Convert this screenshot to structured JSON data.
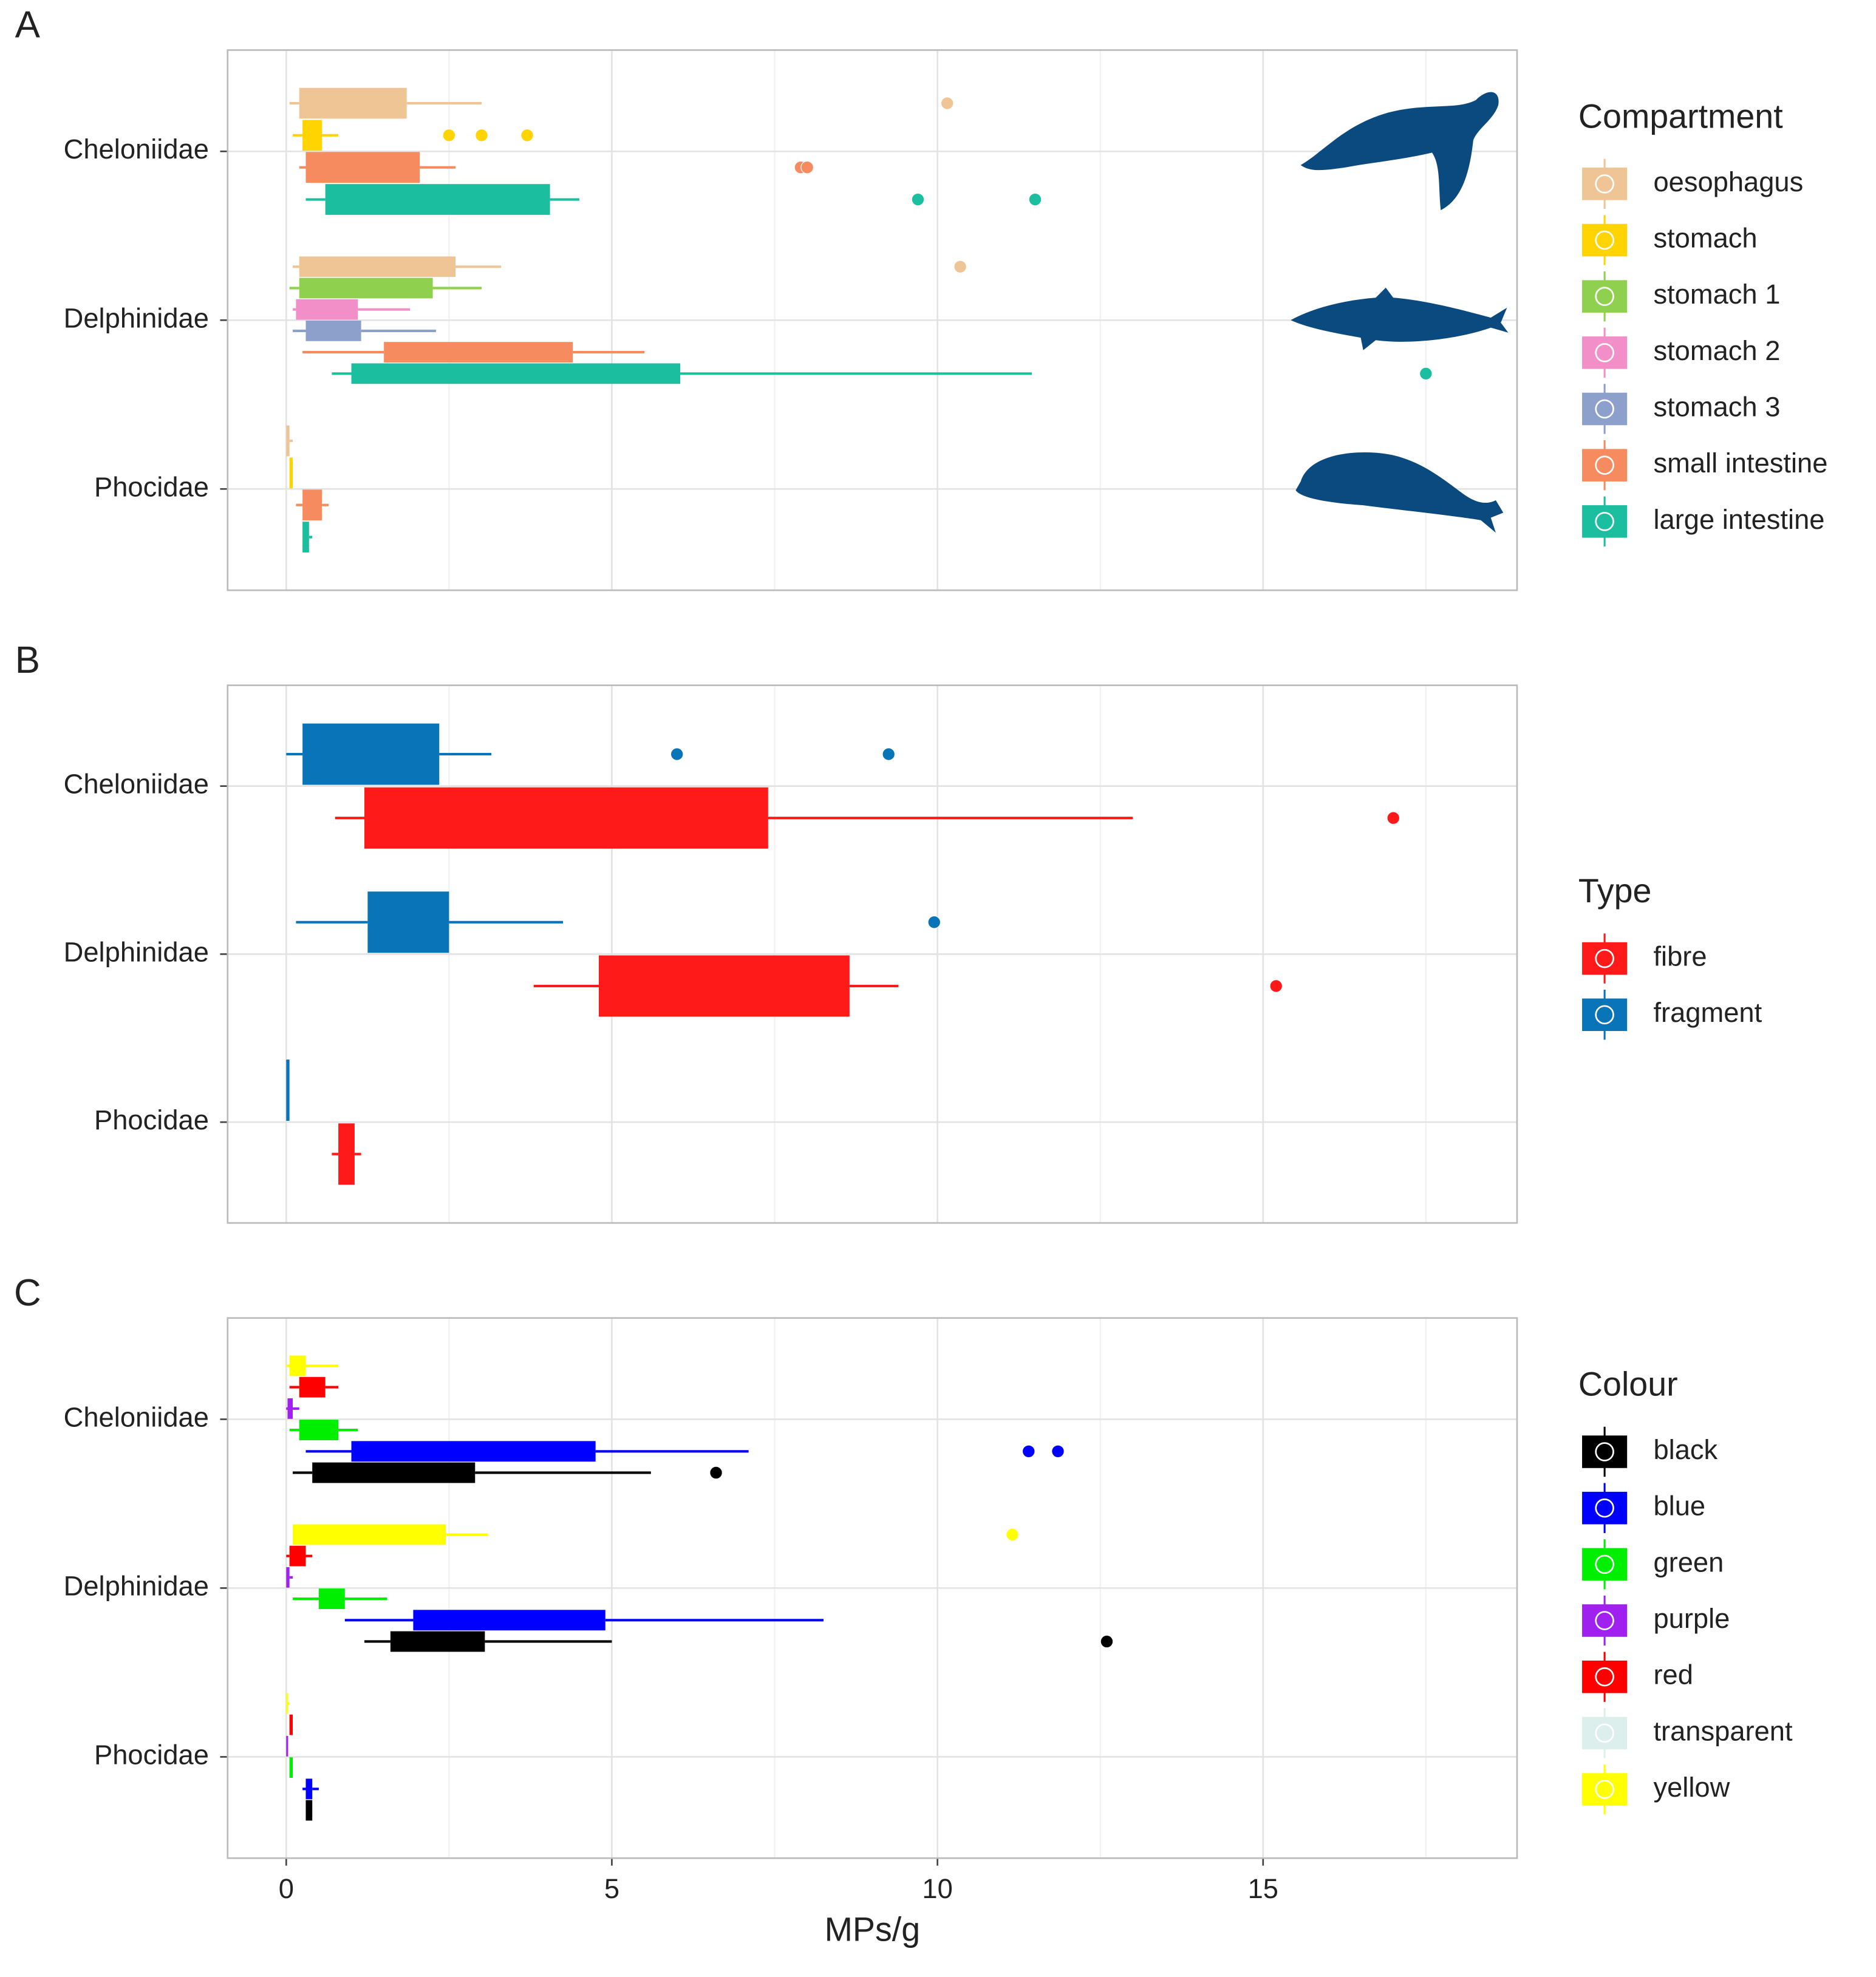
{
  "chart_data": [
    {
      "type": "boxplot",
      "orientation": "horizontal",
      "panel_label": "A",
      "legend_title": "Compartment",
      "first_series_on_top": true,
      "grid": true,
      "x_tick_labels": false,
      "categories": [
        "Cheloniidae",
        "Delphinidae",
        "Phocidae"
      ],
      "xlim": [
        -0.9,
        18.9
      ],
      "xticks": [
        0,
        5,
        10,
        15
      ],
      "minor_xticks": [
        2.5,
        7.5,
        12.5,
        17.5
      ],
      "series": [
        {
          "name": "oesophagus",
          "color": "#f0c596",
          "boxes": [
            [
              0.05,
              0.2,
              1.85,
              3.0
            ],
            [
              0.1,
              0.2,
              2.6,
              3.3
            ],
            [
              0.0,
              0.0,
              0.05,
              0.1
            ]
          ],
          "outliers": [
            [
              10.15
            ],
            [
              10.35
            ],
            []
          ]
        },
        {
          "name": "stomach",
          "color": "#ffd400",
          "boxes": [
            [
              0.1,
              0.25,
              0.55,
              0.8
            ],
            null,
            [
              0.05,
              0.05,
              0.1,
              0.1
            ]
          ],
          "outliers": [
            [
              2.5,
              3.0,
              3.7
            ],
            [],
            []
          ]
        },
        {
          "name": "stomach 1",
          "color": "#8fd14f",
          "boxes": [
            null,
            [
              0.05,
              0.2,
              2.25,
              3.0
            ],
            null
          ],
          "outliers": [
            [],
            [],
            []
          ]
        },
        {
          "name": "stomach 2",
          "color": "#f38fc8",
          "boxes": [
            null,
            [
              0.1,
              0.15,
              1.1,
              1.9
            ],
            null
          ],
          "outliers": [
            [],
            [],
            []
          ]
        },
        {
          "name": "stomach 3",
          "color": "#8da0cb",
          "boxes": [
            null,
            [
              0.1,
              0.3,
              1.15,
              2.3
            ],
            null
          ],
          "outliers": [
            [],
            [],
            []
          ]
        },
        {
          "name": "small intestine",
          "color": "#f68b5f",
          "boxes": [
            [
              0.2,
              0.3,
              2.05,
              2.6
            ],
            [
              0.25,
              1.5,
              4.4,
              5.5
            ],
            [
              0.15,
              0.25,
              0.55,
              0.65
            ]
          ],
          "outliers": [
            [
              7.9,
              8.0
            ],
            [],
            []
          ]
        },
        {
          "name": "large intestine",
          "color": "#1bbf9f",
          "boxes": [
            [
              0.3,
              0.6,
              4.05,
              4.5
            ],
            [
              0.7,
              1.0,
              6.05,
              11.45
            ],
            [
              0.25,
              0.25,
              0.35,
              0.4
            ]
          ],
          "outliers": [
            [
              9.7,
              11.5
            ],
            [
              17.5
            ],
            []
          ]
        }
      ]
    },
    {
      "type": "boxplot",
      "orientation": "horizontal",
      "panel_label": "B",
      "legend_title": "Type",
      "first_series_on_top": false,
      "grid": true,
      "x_tick_labels": false,
      "categories": [
        "Cheloniidae",
        "Delphinidae",
        "Phocidae"
      ],
      "xlim": [
        -0.9,
        18.9
      ],
      "xticks": [
        0,
        5,
        10,
        15
      ],
      "minor_xticks": [
        2.5,
        7.5,
        12.5,
        17.5
      ],
      "series": [
        {
          "name": "fibre",
          "color": "#ff1a1a",
          "boxes": [
            [
              0.75,
              1.2,
              7.4,
              13.0
            ],
            [
              3.8,
              4.8,
              8.65,
              9.4
            ],
            [
              0.7,
              0.8,
              1.05,
              1.15
            ]
          ],
          "outliers": [
            [
              17.0
            ],
            [
              15.2
            ],
            []
          ]
        },
        {
          "name": "fragment",
          "color": "#0a74b8",
          "boxes": [
            [
              0.0,
              0.25,
              2.35,
              3.15
            ],
            [
              0.15,
              1.25,
              2.5,
              4.25
            ],
            [
              0.0,
              0.0,
              0.05,
              0.05
            ]
          ],
          "outliers": [
            [
              6.0,
              9.25
            ],
            [
              9.95
            ],
            []
          ]
        }
      ]
    },
    {
      "type": "boxplot",
      "orientation": "horizontal",
      "panel_label": "C",
      "legend_title": "Colour",
      "first_series_on_top": false,
      "grid": true,
      "x_tick_labels": true,
      "xlabel": "MPs/g",
      "categories": [
        "Cheloniidae",
        "Delphinidae",
        "Phocidae"
      ],
      "xlim": [
        -0.9,
        18.9
      ],
      "xticks": [
        0,
        5,
        10,
        15
      ],
      "minor_xticks": [
        2.5,
        7.5,
        12.5,
        17.5
      ],
      "series": [
        {
          "name": "black",
          "color": "#000000",
          "boxes": [
            [
              0.1,
              0.4,
              2.9,
              5.6
            ],
            [
              1.2,
              1.6,
              3.05,
              5.0
            ],
            [
              0.3,
              0.3,
              0.4,
              0.4
            ]
          ],
          "outliers": [
            [
              6.6
            ],
            [
              12.6
            ],
            []
          ]
        },
        {
          "name": "blue",
          "color": "#0000ff",
          "boxes": [
            [
              0.3,
              1.0,
              4.75,
              7.1
            ],
            [
              0.9,
              1.95,
              4.9,
              8.25
            ],
            [
              0.25,
              0.3,
              0.4,
              0.5
            ]
          ],
          "outliers": [
            [
              11.4,
              11.85
            ],
            [],
            []
          ]
        },
        {
          "name": "green",
          "color": "#00ee00",
          "boxes": [
            [
              0.05,
              0.2,
              0.8,
              1.1
            ],
            [
              0.1,
              0.5,
              0.9,
              1.55
            ],
            [
              0.05,
              0.05,
              0.1,
              0.1
            ]
          ],
          "outliers": [
            [],
            [],
            []
          ]
        },
        {
          "name": "purple",
          "color": "#a020f0",
          "boxes": [
            [
              0.0,
              0.02,
              0.1,
              0.2
            ],
            [
              0.0,
              0.0,
              0.05,
              0.1
            ],
            [
              0.0,
              0.0,
              0.02,
              0.02
            ]
          ],
          "outliers": [
            [],
            [],
            []
          ]
        },
        {
          "name": "red",
          "color": "#ff0000",
          "boxes": [
            [
              0.05,
              0.2,
              0.6,
              0.8
            ],
            [
              0.0,
              0.05,
              0.3,
              0.4
            ],
            [
              0.05,
              0.05,
              0.1,
              0.1
            ]
          ],
          "outliers": [
            [],
            [],
            []
          ]
        },
        {
          "name": "transparent",
          "color": "#dcefed",
          "boxes": [
            null,
            null,
            null
          ],
          "outliers": [
            [],
            [],
            []
          ]
        },
        {
          "name": "yellow",
          "color": "#ffff00",
          "boxes": [
            [
              0.0,
              0.05,
              0.3,
              0.8
            ],
            [
              0.1,
              0.1,
              2.45,
              3.1
            ],
            [
              0.0,
              0.0,
              0.02,
              0.05
            ]
          ],
          "outliers": [
            [],
            [
              11.15
            ],
            []
          ]
        }
      ]
    }
  ]
}
